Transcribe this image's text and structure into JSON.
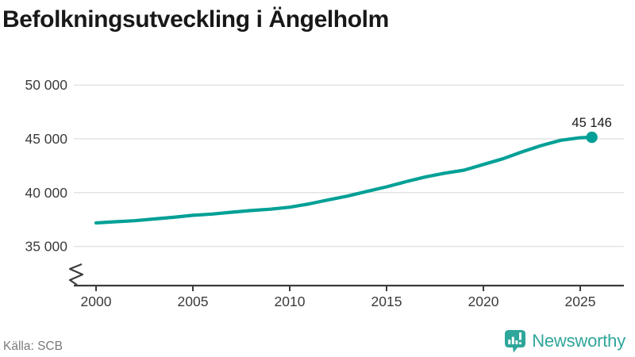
{
  "title": "Befolkningsutveckling i Ängelholm",
  "source": "Källa: SCB",
  "logo": {
    "name": "Newsworthy",
    "icon": "newsworthy-speech-bubble-bar-chart-icon"
  },
  "colors": {
    "line": "#00A096",
    "logo": "#2FA69B",
    "grid": "#E3E3E3",
    "axis": "#3B3B3B",
    "title": "#181818",
    "muted": "#7A7A7A"
  },
  "chart_data": {
    "type": "line",
    "title": "Befolkningsutveckling i Ängelholm",
    "xlabel": "",
    "ylabel": "",
    "grid": true,
    "axis_break": true,
    "ylim": [
      35000,
      50000
    ],
    "xlim": [
      2000,
      2026
    ],
    "yticks": [
      {
        "value": 50000,
        "label": "50 000"
      },
      {
        "value": 45000,
        "label": "45 000"
      },
      {
        "value": 40000,
        "label": "40 000"
      },
      {
        "value": 35000,
        "label": "35 000"
      }
    ],
    "xticks": [
      2000,
      2005,
      2010,
      2015,
      2020,
      2025
    ],
    "x": [
      2000,
      2001,
      2002,
      2003,
      2004,
      2005,
      2006,
      2007,
      2008,
      2009,
      2010,
      2011,
      2012,
      2013,
      2014,
      2015,
      2016,
      2017,
      2018,
      2019,
      2020,
      2021,
      2022,
      2023,
      2024,
      2025,
      2025.6
    ],
    "values": [
      37180,
      37290,
      37390,
      37550,
      37710,
      37890,
      38010,
      38180,
      38330,
      38460,
      38640,
      38950,
      39330,
      39680,
      40120,
      40540,
      41020,
      41450,
      41810,
      42090,
      42620,
      43140,
      43790,
      44380,
      44870,
      45100,
      45146
    ],
    "series_name": "Befolkning",
    "end_point": {
      "x": 2025.6,
      "value": 45146,
      "label": "45 146"
    }
  }
}
